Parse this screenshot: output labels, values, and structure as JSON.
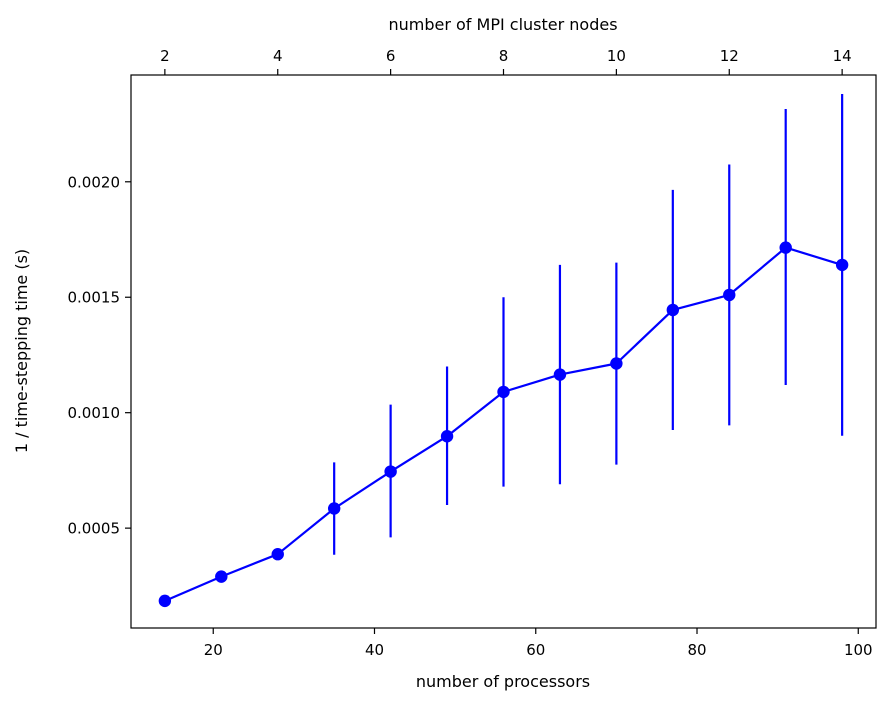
{
  "chart_data": {
    "type": "line",
    "title": "",
    "xlabel": "number of processors",
    "ylabel": "1 / time-stepping time (s)",
    "top_xlabel": "number of MPI cluster nodes",
    "xlim": [
      9.8,
      102.2
    ],
    "ylim": [
      6.75e-05,
      0.0024625
    ],
    "x_ticks": [
      20,
      40,
      60,
      80,
      100
    ],
    "x_tick_labels": [
      "20",
      "40",
      "60",
      "80",
      "100"
    ],
    "y_ticks": [
      0.0005,
      0.001,
      0.0015,
      0.002
    ],
    "y_tick_labels": [
      "0.0005",
      "0.0010",
      "0.0015",
      "0.0020"
    ],
    "top_ticks": [
      2,
      4,
      6,
      8,
      10,
      12,
      14
    ],
    "top_tick_labels": [
      "2",
      "4",
      "6",
      "8",
      "10",
      "12",
      "14"
    ],
    "top_axis_scale": "processors = 7 × nodes",
    "series": [
      {
        "color": "#0000ff",
        "marker": "circle",
        "x": [
          14,
          21,
          28,
          35,
          42,
          49,
          56,
          63,
          70,
          77,
          84,
          91,
          98
        ],
        "y": [
          0.000185,
          0.00029,
          0.000387,
          0.000585,
          0.000745,
          0.000898,
          0.00109,
          0.001165,
          0.001213,
          0.001445,
          0.00151,
          0.001715,
          0.00164
        ],
        "err_low": [
          0.000185,
          0.00029,
          0.000387,
          0.000385,
          0.00046,
          0.0006,
          0.00068,
          0.00069,
          0.000775,
          0.000925,
          0.000945,
          0.00112,
          0.0009
        ],
        "err_high": [
          0.000185,
          0.00029,
          0.000387,
          0.000785,
          0.001035,
          0.0012,
          0.0015,
          0.00164,
          0.00165,
          0.001965,
          0.002075,
          0.002315,
          0.00238
        ]
      }
    ],
    "grid": false,
    "legend": "none"
  }
}
